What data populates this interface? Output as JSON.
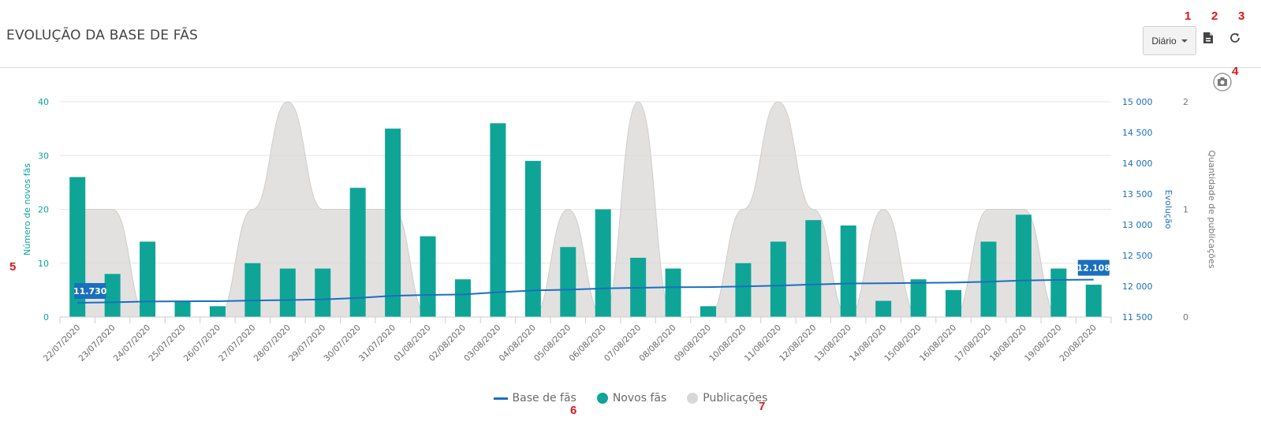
{
  "header": {
    "title": "EVOLUÇÃO DA BASE DE FÃS",
    "period_label": "Diário",
    "export_icon": "file-export-icon",
    "refresh_icon": "refresh-icon",
    "camera_icon": "camera-icon"
  },
  "markers": [
    "1",
    "2",
    "3",
    "4",
    "5",
    "6",
    "7"
  ],
  "colors": {
    "new_fans": "#0ea597",
    "fan_base": "#1a6fbf",
    "publications": "#d9d7d5"
  },
  "chart_data": {
    "type": "bar",
    "categories": [
      "22/07/2020",
      "23/07/2020",
      "24/07/2020",
      "25/07/2020",
      "26/07/2020",
      "27/07/2020",
      "28/07/2020",
      "29/07/2020",
      "30/07/2020",
      "31/07/2020",
      "01/08/2020",
      "02/08/2020",
      "03/08/2020",
      "04/08/2020",
      "05/08/2020",
      "06/08/2020",
      "07/08/2020",
      "08/08/2020",
      "09/08/2020",
      "10/08/2020",
      "11/08/2020",
      "12/08/2020",
      "13/08/2020",
      "14/08/2020",
      "15/08/2020",
      "16/08/2020",
      "17/08/2020",
      "18/08/2020",
      "19/08/2020",
      "20/08/2020"
    ],
    "series": [
      {
        "name": "Novos fãs",
        "type": "bar",
        "axis": "left",
        "values": [
          26,
          8,
          14,
          3,
          2,
          10,
          9,
          9,
          24,
          35,
          15,
          7,
          36,
          29,
          13,
          20,
          11,
          9,
          2,
          10,
          14,
          18,
          17,
          3,
          7,
          5,
          14,
          19,
          9,
          6
        ]
      },
      {
        "name": "Base de fãs",
        "type": "line",
        "axis": "right",
        "values": [
          11730,
          11738,
          11752,
          11755,
          11757,
          11767,
          11776,
          11785,
          11809,
          11844,
          11859,
          11866,
          11902,
          11931,
          11944,
          11964,
          11975,
          11984,
          11986,
          11996,
          12010,
          12028,
          12045,
          12048,
          12055,
          12060,
          12074,
          12093,
          12102,
          12108
        ]
      },
      {
        "name": "Publicações",
        "type": "area",
        "axis": "right2",
        "values": [
          1,
          1,
          0,
          0,
          0,
          1,
          2,
          1,
          1,
          1,
          0,
          0,
          0,
          0,
          1,
          0,
          2,
          0,
          0,
          1,
          2,
          1,
          0,
          1,
          0,
          0,
          1,
          1,
          0,
          0
        ]
      }
    ],
    "yaxis_left": {
      "label": "Número de novos fãs",
      "range": [
        0,
        40
      ],
      "ticks": [
        "0",
        "10",
        "20",
        "30",
        "40"
      ]
    },
    "yaxis_right": {
      "label": "Evolução",
      "range": [
        11500,
        15000
      ],
      "ticks": [
        "11 500",
        "12 000",
        "12 500",
        "13 000",
        "13 500",
        "14 000",
        "14 500",
        "15 000"
      ]
    },
    "yaxis_right2": {
      "label": "Quantidade de publicações",
      "range": [
        0,
        2
      ],
      "ticks": [
        "0",
        "1",
        "2"
      ]
    },
    "point_labels": [
      {
        "series": "Base de fãs",
        "index": 0,
        "text": "11.730"
      },
      {
        "series": "Base de fãs",
        "index": 29,
        "text": "12.108"
      }
    ],
    "legend_position": "bottom-center",
    "grid": true
  }
}
